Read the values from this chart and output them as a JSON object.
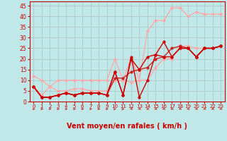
{
  "background_color": "#c0e8e8",
  "grid_color": "#b0c8c8",
  "xlabel": "Vent moyen/en rafales ( km/h )",
  "xlabel_color": "#cc0000",
  "xlabel_fontsize": 7,
  "ylabel_ticks": [
    0,
    5,
    10,
    15,
    20,
    25,
    30,
    35,
    40,
    45
  ],
  "xlim": [
    -0.5,
    23.5
  ],
  "ylim": [
    0,
    47
  ],
  "xticks": [
    0,
    1,
    2,
    3,
    4,
    5,
    6,
    7,
    8,
    9,
    10,
    11,
    12,
    13,
    14,
    15,
    16,
    17,
    18,
    19,
    20,
    21,
    22,
    23
  ],
  "series": [
    {
      "x": [
        0,
        1,
        2,
        3,
        4,
        5,
        6,
        7,
        8,
        9,
        10,
        11,
        12,
        13,
        14,
        15,
        16,
        17,
        18,
        19,
        20,
        21,
        22,
        23
      ],
      "y": [
        12,
        10,
        7,
        10,
        10,
        10,
        10,
        10,
        10,
        10,
        20,
        10,
        21,
        10,
        33,
        38,
        38,
        44,
        44,
        40,
        42,
        41,
        41,
        41
      ],
      "color": "#ffaaaa",
      "linewidth": 1.0,
      "marker": "o",
      "markersize": 2.0,
      "zorder": 2
    },
    {
      "x": [
        0,
        1,
        2,
        3,
        4,
        5,
        6,
        7,
        8,
        9,
        10,
        11,
        12,
        13,
        14,
        15,
        16,
        17,
        18,
        19,
        20,
        21,
        22,
        23
      ],
      "y": [
        7,
        3,
        7,
        5,
        5,
        6,
        6,
        5,
        5,
        5,
        10,
        10,
        9,
        10,
        10,
        16,
        20,
        20,
        26,
        26,
        25,
        25,
        25,
        26
      ],
      "color": "#ffaaaa",
      "linewidth": 1.0,
      "marker": "o",
      "markersize": 2.0,
      "zorder": 2
    },
    {
      "x": [
        0,
        1,
        2,
        3,
        4,
        5,
        6,
        7,
        8,
        9,
        10,
        11,
        12,
        13,
        14,
        15,
        16,
        17,
        18,
        19,
        20,
        21,
        22,
        23
      ],
      "y": [
        7,
        2,
        2,
        3,
        4,
        3,
        4,
        4,
        4,
        3,
        11,
        11,
        14,
        15,
        16,
        20,
        21,
        25,
        26,
        25,
        21,
        25,
        25,
        26
      ],
      "color": "#cc2222",
      "linewidth": 1.0,
      "marker": "o",
      "markersize": 2.0,
      "zorder": 3
    },
    {
      "x": [
        0,
        1,
        2,
        3,
        4,
        5,
        6,
        7,
        8,
        9,
        10,
        11,
        12,
        13,
        14,
        15,
        16,
        17,
        18,
        19,
        20,
        21,
        22,
        23
      ],
      "y": [
        7,
        2,
        2,
        3,
        4,
        3,
        4,
        4,
        4,
        3,
        14,
        3,
        20,
        15,
        21,
        22,
        21,
        21,
        25,
        25,
        21,
        25,
        25,
        26
      ],
      "color": "#cc0000",
      "linewidth": 1.0,
      "marker": "o",
      "markersize": 2.0,
      "zorder": 3
    },
    {
      "x": [
        0,
        1,
        2,
        3,
        4,
        5,
        6,
        7,
        8,
        9,
        10,
        11,
        12,
        13,
        14,
        15,
        16,
        17,
        18,
        19,
        20,
        21,
        22,
        23
      ],
      "y": [
        7,
        2,
        2,
        3,
        4,
        3,
        4,
        4,
        4,
        3,
        14,
        3,
        21,
        2,
        10,
        22,
        28,
        21,
        25,
        25,
        21,
        25,
        25,
        26
      ],
      "color": "#cc0000",
      "linewidth": 1.0,
      "marker": "o",
      "markersize": 2.0,
      "zorder": 3
    }
  ],
  "arrow_angles": [
    90,
    90,
    90,
    90,
    90,
    90,
    90,
    90,
    90,
    90,
    45,
    45,
    225,
    225,
    225,
    225,
    225,
    225,
    225,
    225,
    225,
    225,
    225,
    225
  ],
  "arrow_color": "#cc0000"
}
